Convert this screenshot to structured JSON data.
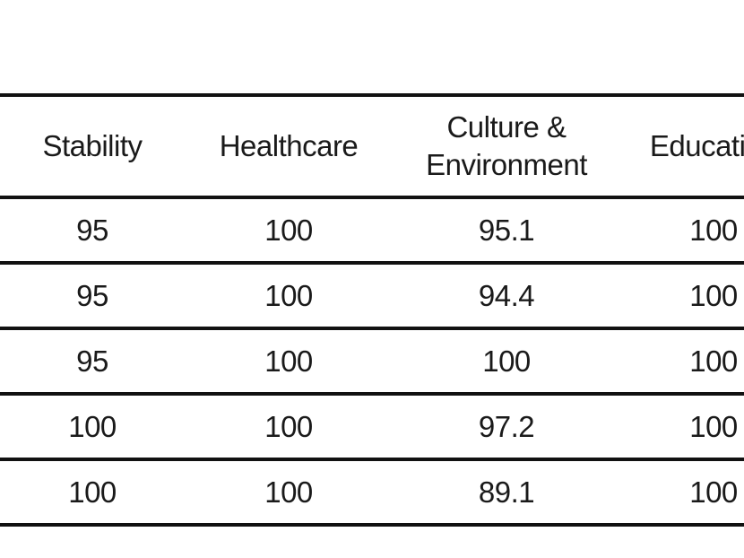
{
  "table": {
    "columns": [
      "Stability",
      "Healthcare",
      "Culture &\nEnvironment",
      "Education"
    ],
    "rows": [
      [
        "95",
        "100",
        "95.1",
        "100"
      ],
      [
        "95",
        "100",
        "94.4",
        "100"
      ],
      [
        "95",
        "100",
        "100",
        "100"
      ],
      [
        "100",
        "100",
        "97.2",
        "100"
      ],
      [
        "100",
        "100",
        "89.1",
        "100"
      ]
    ]
  }
}
